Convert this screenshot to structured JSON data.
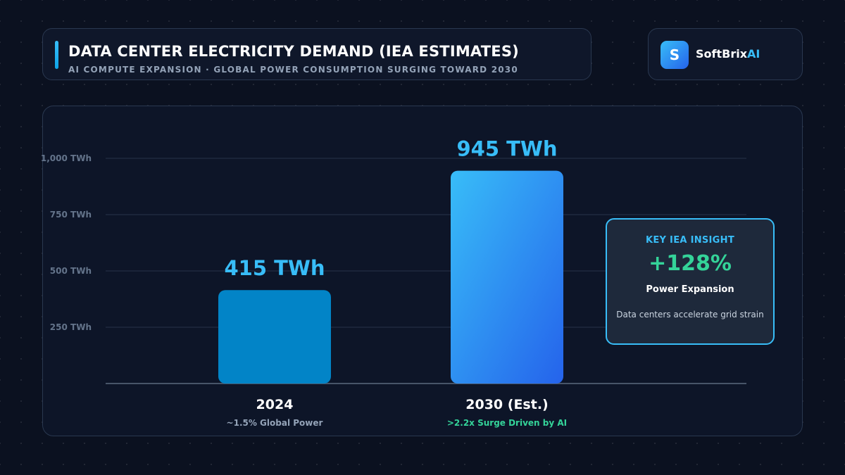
{
  "header": {
    "title": "DATA CENTER ELECTRICITY DEMAND (IEA ESTIMATES)",
    "subtitle": "AI COMPUTE EXPANSION · GLOBAL POWER CONSUMPTION SURGING TOWARD 2030"
  },
  "brand": {
    "logo_letter": "S",
    "name_prefix": "SoftBrix",
    "name_suffix": "AI"
  },
  "insight": {
    "heading": "KEY IEA INSIGHT",
    "value": "+128%",
    "label": "Power Expansion",
    "description": "Data centers accelerate grid strain"
  },
  "colors": {
    "accent": "#38bdf8",
    "positive": "#34d399",
    "bar_2024": "#0284c7",
    "bar_2030_top": "#38bdf8",
    "bar_2030_bottom": "#2563eb"
  },
  "chart_data": {
    "type": "bar",
    "categories": [
      "2024",
      "2030 (Est.)"
    ],
    "values": [
      415,
      945
    ],
    "value_labels": [
      "415 TWh",
      "945 TWh"
    ],
    "category_notes": [
      "~1.5% Global Power",
      ">2.2x Surge Driven by AI"
    ],
    "ylim": [
      0,
      1000
    ],
    "yticks": [
      {
        "value": 250,
        "label": "250 TWh"
      },
      {
        "value": 500,
        "label": "500 TWh"
      },
      {
        "value": 750,
        "label": "750 TWh"
      },
      {
        "value": 1000,
        "label": "1,000 TWh"
      }
    ],
    "grid": true
  }
}
